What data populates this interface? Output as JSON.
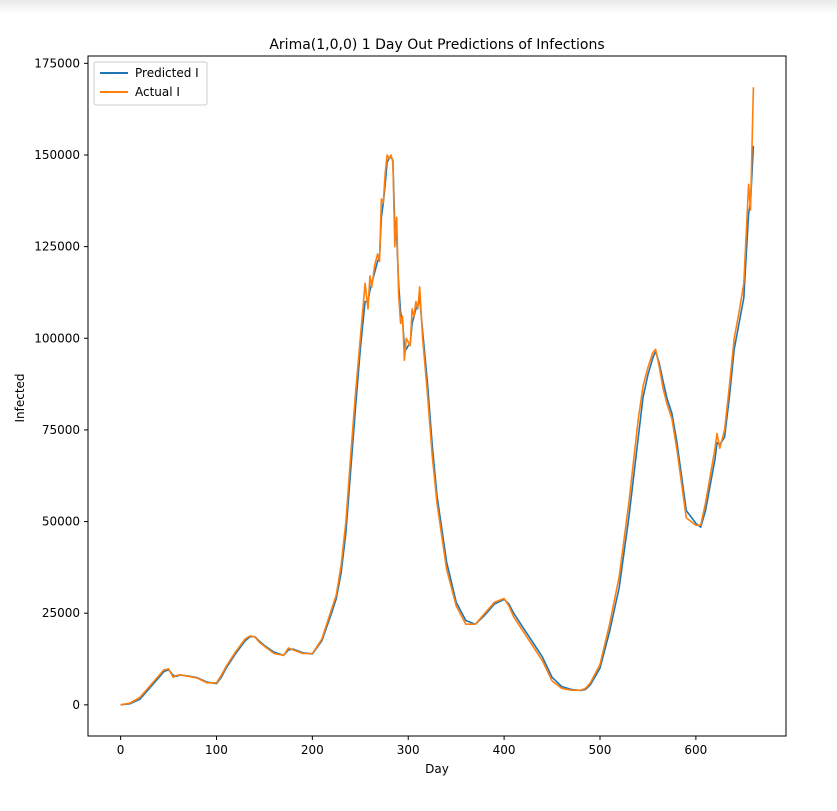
{
  "chart_data": {
    "type": "line",
    "title": "Arima(1,0,0) 1 Day Out Predictions of Infections",
    "xlabel": "Day",
    "ylabel": "Infected",
    "xlim": [
      -34,
      694
    ],
    "ylim": [
      -8500,
      177000
    ],
    "xticks": [
      0,
      100,
      200,
      300,
      400,
      500,
      600
    ],
    "yticks": [
      0,
      25000,
      50000,
      75000,
      100000,
      125000,
      150000,
      175000
    ],
    "grid": false,
    "legend": "top-left",
    "series": [
      {
        "name": "Predicted I",
        "color": "#1f77b4"
      },
      {
        "name": "Actual I",
        "color": "#ff7f0e"
      }
    ],
    "x": [
      0,
      10,
      20,
      30,
      40,
      45,
      50,
      55,
      58,
      62,
      70,
      80,
      90,
      100,
      105,
      110,
      120,
      130,
      135,
      140,
      145,
      150,
      160,
      170,
      175,
      180,
      190,
      200,
      210,
      220,
      225,
      230,
      235,
      240,
      245,
      250,
      255,
      258,
      260,
      262,
      265,
      268,
      270,
      272,
      274,
      276,
      278,
      280,
      282,
      284,
      286,
      288,
      290,
      292,
      294,
      296,
      298,
      300,
      302,
      304,
      306,
      308,
      310,
      312,
      315,
      320,
      325,
      330,
      340,
      350,
      360,
      370,
      380,
      390,
      400,
      405,
      410,
      420,
      430,
      440,
      450,
      460,
      470,
      480,
      485,
      490,
      500,
      510,
      520,
      530,
      540,
      545,
      550,
      555,
      558,
      562,
      566,
      570,
      575,
      580,
      590,
      600,
      605,
      610,
      620,
      622,
      625,
      630,
      635,
      640,
      645,
      650,
      655,
      657,
      660
    ],
    "actual": [
      0,
      500,
      2000,
      5000,
      8000,
      9500,
      9800,
      7500,
      8000,
      8200,
      7800,
      7300,
      6000,
      6000,
      8000,
      10500,
      14500,
      18000,
      18800,
      18500,
      17000,
      16000,
      14000,
      13500,
      15500,
      15000,
      14000,
      14000,
      18000,
      26000,
      30000,
      38000,
      50000,
      68000,
      85000,
      100000,
      115000,
      108000,
      117000,
      114000,
      120000,
      123000,
      121000,
      138000,
      137000,
      145000,
      150000,
      149000,
      150000,
      148000,
      125000,
      133000,
      112000,
      104000,
      106000,
      94000,
      100000,
      99000,
      98000,
      108000,
      106000,
      110000,
      108000,
      114000,
      100000,
      85000,
      68000,
      55000,
      37000,
      27000,
      22000,
      22000,
      25000,
      28000,
      29000,
      27000,
      24000,
      20000,
      16000,
      12000,
      6500,
      4500,
      4000,
      4000,
      4500,
      6000,
      11000,
      22000,
      35000,
      55000,
      78000,
      87000,
      92000,
      96000,
      97000,
      92000,
      86000,
      82000,
      78000,
      70000,
      51000,
      49000,
      49000,
      55000,
      70000,
      74000,
      70000,
      75000,
      87000,
      100000,
      107000,
      115000,
      142000,
      135000,
      168500
    ],
    "predicted": [
      0,
      300,
      1500,
      4500,
      7500,
      9000,
      9600,
      8000,
      7800,
      8100,
      7900,
      7400,
      6200,
      5800,
      7500,
      10000,
      14000,
      17500,
      18600,
      18600,
      17300,
      16200,
      14400,
      13500,
      15000,
      15200,
      14200,
      13900,
      17500,
      25000,
      29000,
      36000,
      47000,
      64000,
      81000,
      97000,
      110000,
      110000,
      113000,
      115000,
      118000,
      121000,
      122000,
      133000,
      137000,
      142000,
      148000,
      149000,
      149500,
      148500,
      130000,
      128000,
      115000,
      107000,
      105000,
      98000,
      97000,
      98000,
      98500,
      104000,
      106000,
      108000,
      109000,
      111000,
      102000,
      88000,
      71000,
      57000,
      39000,
      28000,
      23000,
      22000,
      24500,
      27500,
      28800,
      27500,
      25000,
      21000,
      17000,
      13000,
      7500,
      5000,
      4200,
      3900,
      4200,
      5500,
      10000,
      20000,
      32000,
      51000,
      73000,
      84000,
      90000,
      94500,
      96500,
      93000,
      88000,
      83500,
      79500,
      72000,
      53000,
      49500,
      48500,
      53000,
      67000,
      71500,
      71000,
      73000,
      84000,
      97000,
      104000,
      111000,
      134000,
      137000,
      152500
    ]
  }
}
